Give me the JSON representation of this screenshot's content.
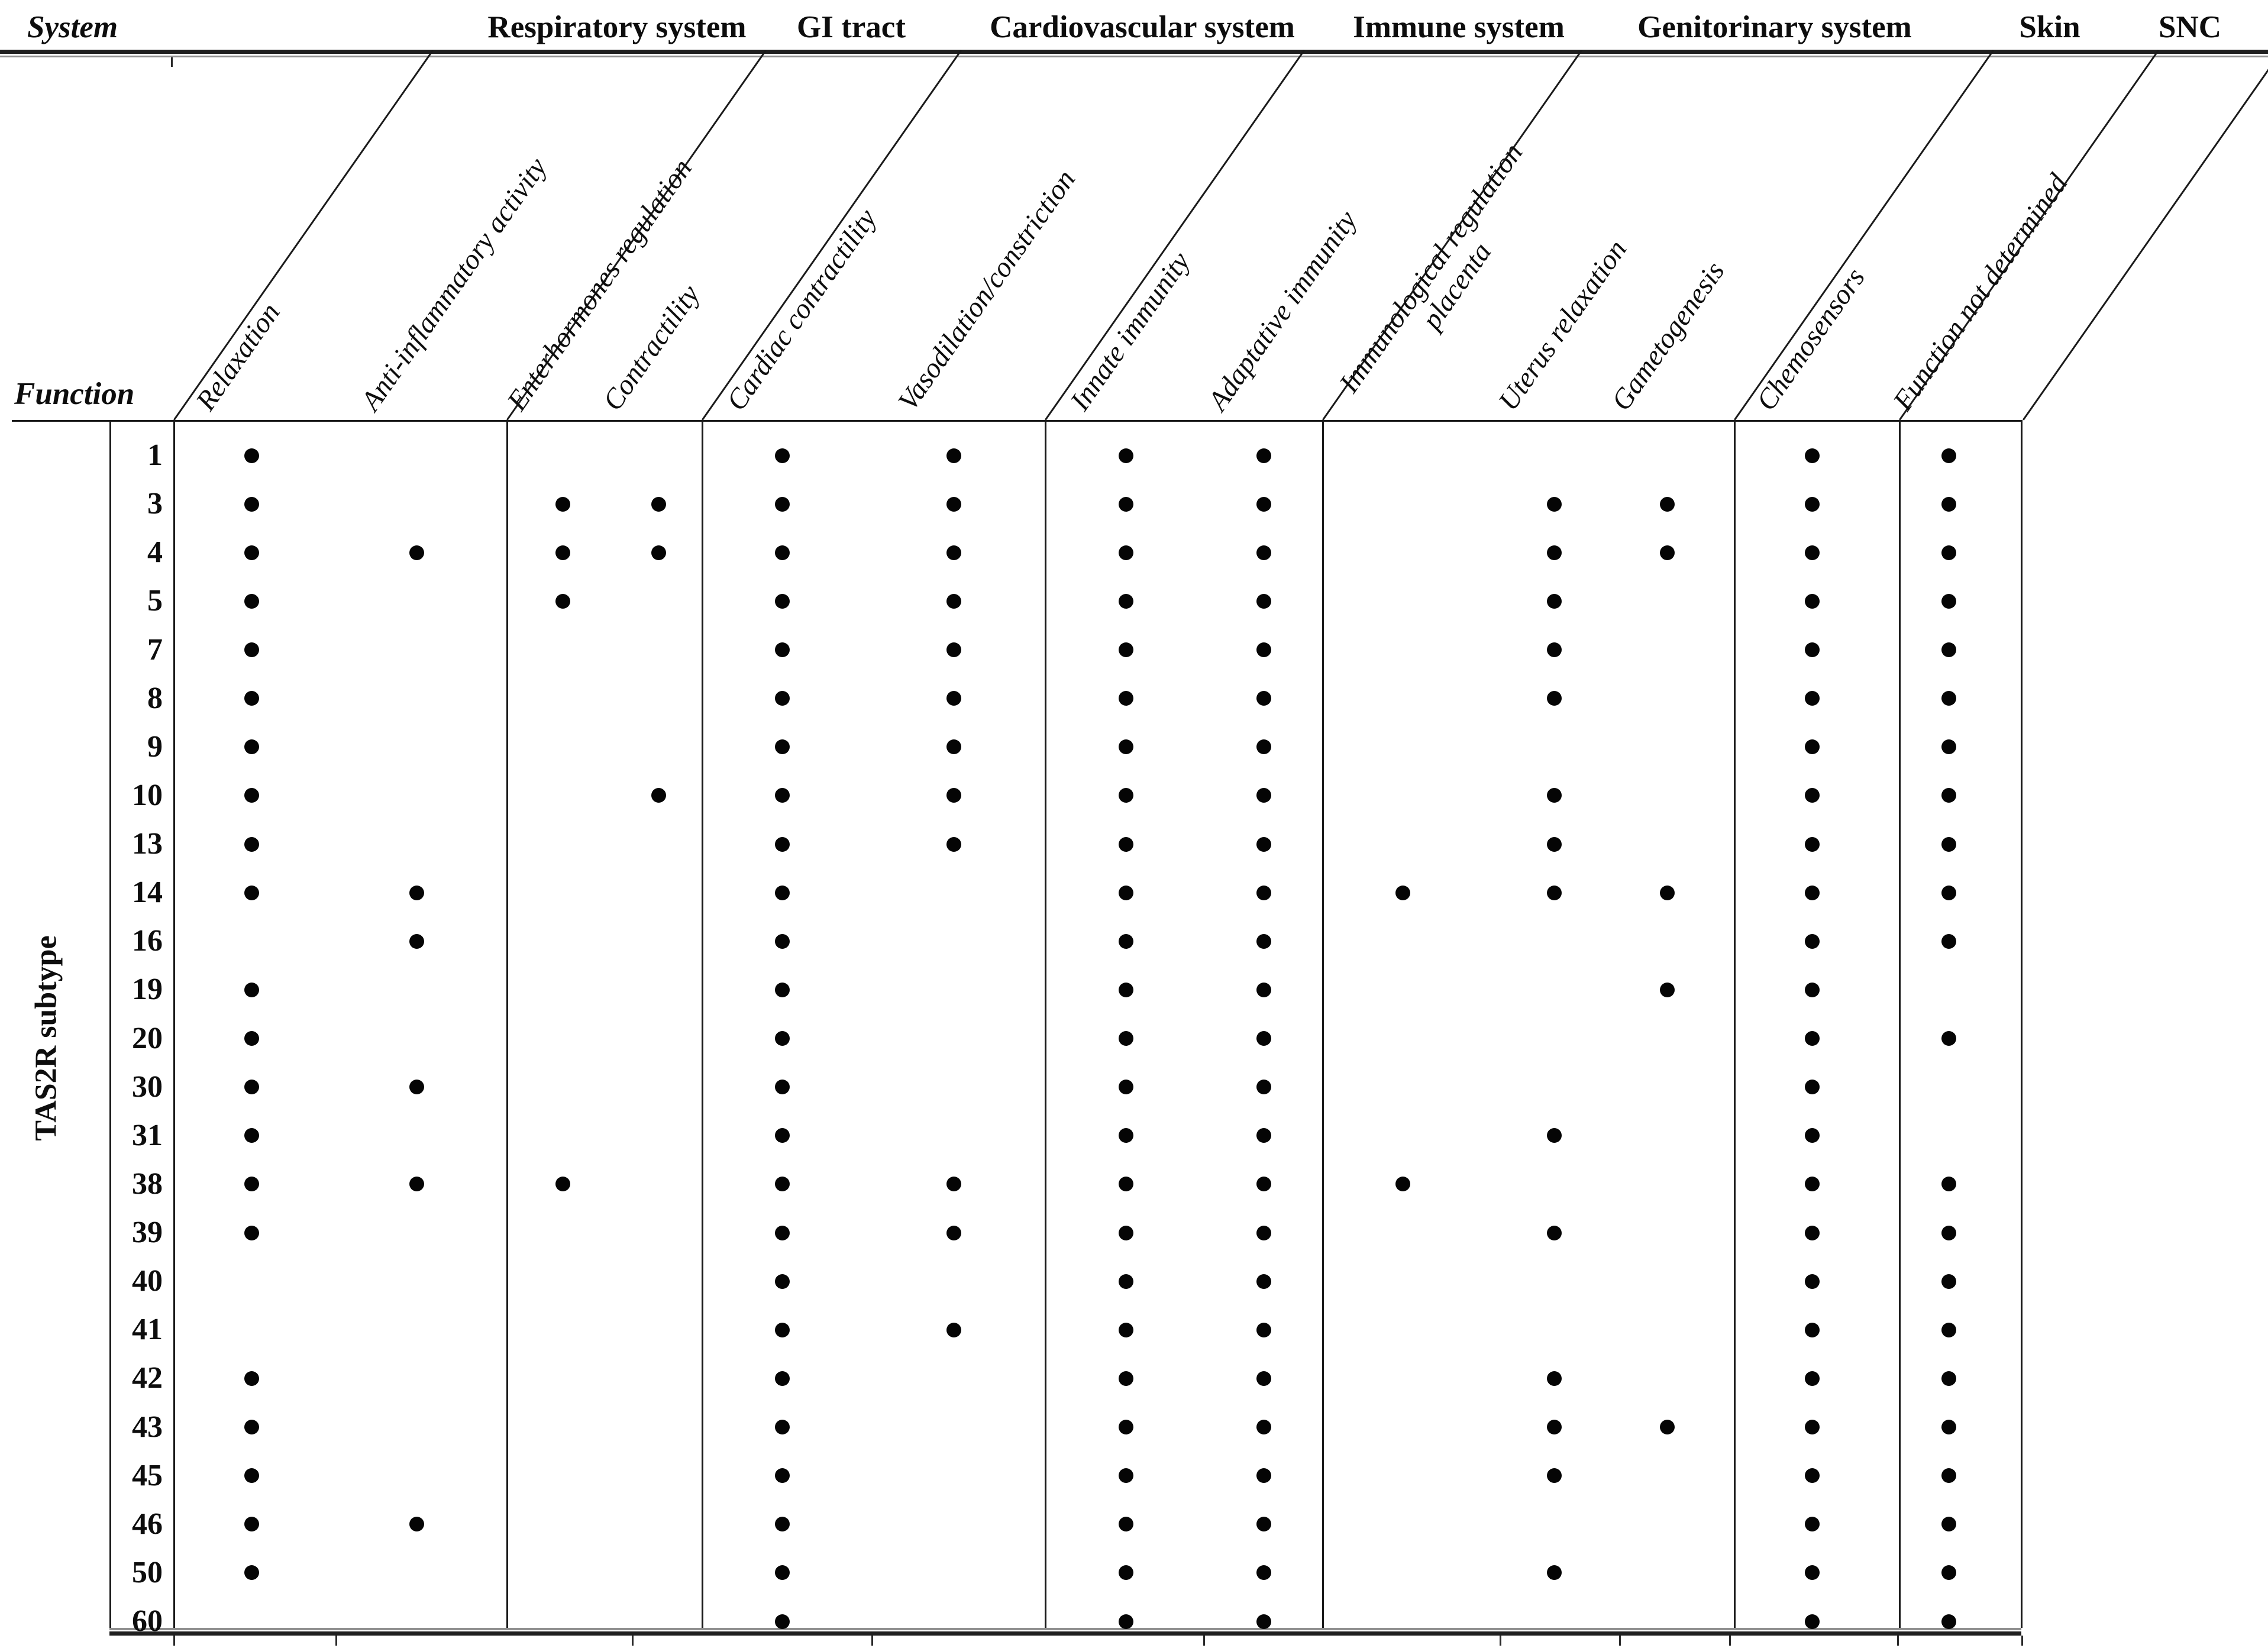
{
  "figure": {
    "system_axis_label": "System",
    "function_axis_label": "Function",
    "row_axis_label": "TAS2R subtype"
  },
  "systems": [
    {
      "name": "Respiratory system"
    },
    {
      "name": "GI tract"
    },
    {
      "name": "Cardiovascular system"
    },
    {
      "name": "Immune system"
    },
    {
      "name": "Genitorinary system"
    },
    {
      "name": "Skin"
    },
    {
      "name": "SNC"
    }
  ],
  "functions": [
    {
      "label": "Relaxation",
      "system": "Respiratory system"
    },
    {
      "label": "Anti-inflammatory activity",
      "system": "Respiratory system"
    },
    {
      "label": "Enterhormones regulation",
      "system": "GI tract"
    },
    {
      "label": "Contractility",
      "system": "GI tract"
    },
    {
      "label": "Cardiac contractility",
      "system": "Cardiovascular system"
    },
    {
      "label": "Vasodilation/constriction",
      "system": "Cardiovascular system"
    },
    {
      "label": "Innate immunity",
      "system": "Immune system"
    },
    {
      "label": "Adaptative immunity",
      "system": "Immune system"
    },
    {
      "label": "Immunological regulation",
      "label2": "placenta",
      "system": "Genitorinary system"
    },
    {
      "label": "Uterus relaxation",
      "system": "Genitorinary system"
    },
    {
      "label": "Gametogenesis",
      "system": "Genitorinary system"
    },
    {
      "label": "Chemosensors",
      "system": "Skin"
    },
    {
      "label": "Function not determined",
      "system": "SNC"
    }
  ],
  "chart_data": {
    "type": "table",
    "row_axis_label": "TAS2R subtype",
    "col_axis_label": "Function",
    "group_axis_label": "System",
    "groups": [
      {
        "system": "Respiratory system",
        "functions": [
          "Relaxation",
          "Anti-inflammatory activity"
        ]
      },
      {
        "system": "GI tract",
        "functions": [
          "Enterhormones regulation",
          "Contractility"
        ]
      },
      {
        "system": "Cardiovascular system",
        "functions": [
          "Cardiac contractility",
          "Vasodilation/constriction"
        ]
      },
      {
        "system": "Immune system",
        "functions": [
          "Innate immunity",
          "Adaptative immunity"
        ]
      },
      {
        "system": "Genitorinary system",
        "functions": [
          "Immunological regulation placenta",
          "Uterus relaxation",
          "Gametogenesis"
        ]
      },
      {
        "system": "Skin",
        "functions": [
          "Chemosensors"
        ]
      },
      {
        "system": "SNC",
        "functions": [
          "Function not determined"
        ]
      }
    ],
    "categories": [
      "Relaxation",
      "Anti-inflammatory activity",
      "Enterhormones regulation",
      "Contractility",
      "Cardiac contractility",
      "Vasodilation/constriction",
      "Innate immunity",
      "Adaptative immunity",
      "Immunological regulation placenta",
      "Uterus relaxation",
      "Gametogenesis",
      "Chemosensors",
      "Function not determined"
    ],
    "value_legend": {
      "1": "dot present",
      "0": "no dot"
    },
    "rows": [
      {
        "subtype": "1",
        "values": [
          1,
          0,
          0,
          0,
          1,
          1,
          1,
          1,
          0,
          0,
          0,
          1,
          1
        ]
      },
      {
        "subtype": "3",
        "values": [
          1,
          0,
          1,
          1,
          1,
          1,
          1,
          1,
          0,
          1,
          1,
          1,
          1
        ]
      },
      {
        "subtype": "4",
        "values": [
          1,
          1,
          1,
          1,
          1,
          1,
          1,
          1,
          0,
          1,
          1,
          1,
          1
        ]
      },
      {
        "subtype": "5",
        "values": [
          1,
          0,
          1,
          0,
          1,
          1,
          1,
          1,
          0,
          1,
          0,
          1,
          1
        ]
      },
      {
        "subtype": "7",
        "values": [
          1,
          0,
          0,
          0,
          1,
          1,
          1,
          1,
          0,
          1,
          0,
          1,
          1
        ]
      },
      {
        "subtype": "8",
        "values": [
          1,
          0,
          0,
          0,
          1,
          1,
          1,
          1,
          0,
          1,
          0,
          1,
          1
        ]
      },
      {
        "subtype": "9",
        "values": [
          1,
          0,
          0,
          0,
          1,
          1,
          1,
          1,
          0,
          0,
          0,
          1,
          1
        ]
      },
      {
        "subtype": "10",
        "values": [
          1,
          0,
          0,
          1,
          1,
          1,
          1,
          1,
          0,
          1,
          0,
          1,
          1
        ]
      },
      {
        "subtype": "13",
        "values": [
          1,
          0,
          0,
          0,
          1,
          1,
          1,
          1,
          0,
          1,
          0,
          1,
          1
        ]
      },
      {
        "subtype": "14",
        "values": [
          1,
          1,
          0,
          0,
          1,
          0,
          1,
          1,
          1,
          1,
          1,
          1,
          1
        ]
      },
      {
        "subtype": "16",
        "values": [
          0,
          1,
          0,
          0,
          1,
          0,
          1,
          1,
          0,
          0,
          0,
          1,
          1
        ]
      },
      {
        "subtype": "19",
        "values": [
          1,
          0,
          0,
          0,
          1,
          0,
          1,
          1,
          0,
          0,
          1,
          1,
          0
        ]
      },
      {
        "subtype": "20",
        "values": [
          1,
          0,
          0,
          0,
          1,
          0,
          1,
          1,
          0,
          0,
          0,
          1,
          1
        ]
      },
      {
        "subtype": "30",
        "values": [
          1,
          1,
          0,
          0,
          1,
          0,
          1,
          1,
          0,
          0,
          0,
          1,
          0
        ]
      },
      {
        "subtype": "31",
        "values": [
          1,
          0,
          0,
          0,
          1,
          0,
          1,
          1,
          0,
          1,
          0,
          1,
          0
        ]
      },
      {
        "subtype": "38",
        "values": [
          1,
          1,
          1,
          0,
          1,
          1,
          1,
          1,
          1,
          0,
          0,
          1,
          1
        ]
      },
      {
        "subtype": "39",
        "values": [
          1,
          0,
          0,
          0,
          1,
          1,
          1,
          1,
          0,
          1,
          0,
          1,
          1
        ]
      },
      {
        "subtype": "40",
        "values": [
          0,
          0,
          0,
          0,
          1,
          0,
          1,
          1,
          0,
          0,
          0,
          1,
          1
        ]
      },
      {
        "subtype": "41",
        "values": [
          0,
          0,
          0,
          0,
          1,
          1,
          1,
          1,
          0,
          0,
          0,
          1,
          1
        ]
      },
      {
        "subtype": "42",
        "values": [
          1,
          0,
          0,
          0,
          1,
          0,
          1,
          1,
          0,
          1,
          0,
          1,
          1
        ]
      },
      {
        "subtype": "43",
        "values": [
          1,
          0,
          0,
          0,
          1,
          0,
          1,
          1,
          0,
          1,
          1,
          1,
          1
        ]
      },
      {
        "subtype": "45",
        "values": [
          1,
          0,
          0,
          0,
          1,
          0,
          1,
          1,
          0,
          1,
          0,
          1,
          1
        ]
      },
      {
        "subtype": "46",
        "values": [
          1,
          1,
          0,
          0,
          1,
          0,
          1,
          1,
          0,
          0,
          0,
          1,
          1
        ]
      },
      {
        "subtype": "50",
        "values": [
          1,
          0,
          0,
          0,
          1,
          0,
          1,
          1,
          0,
          1,
          0,
          1,
          1
        ]
      },
      {
        "subtype": "60",
        "values": [
          0,
          0,
          0,
          0,
          1,
          0,
          1,
          1,
          0,
          0,
          0,
          1,
          1
        ]
      }
    ],
    "colors": {
      "dot": "#050505",
      "line": "#1a1a1a",
      "background": "#ffffff"
    }
  }
}
